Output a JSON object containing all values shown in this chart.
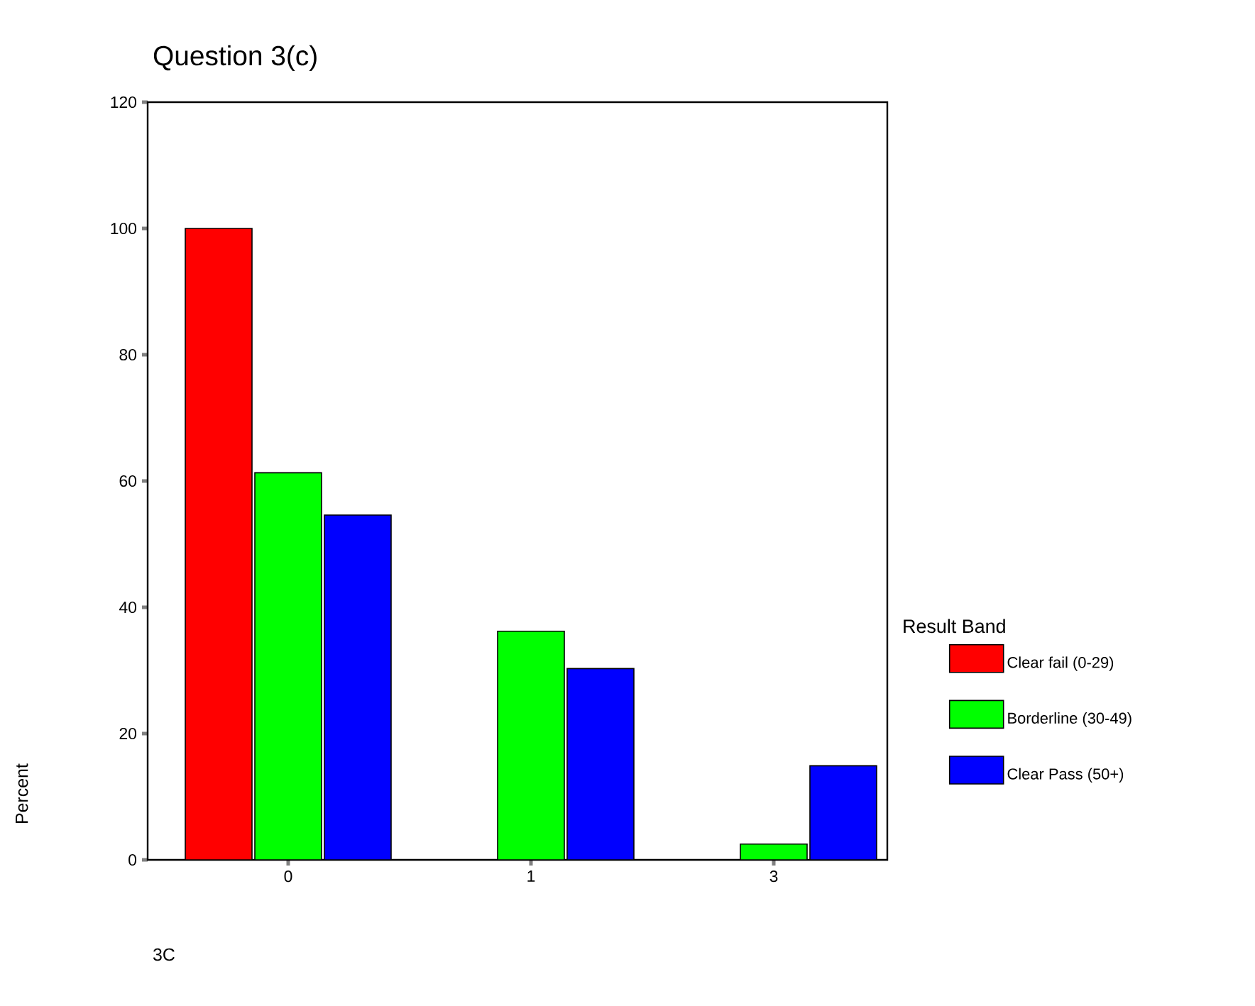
{
  "chart_data": {
    "type": "bar",
    "title": "Question 3(c)",
    "xlabel": "3C",
    "ylabel": "Percent",
    "legend_title": "Result Band",
    "categories": [
      "0",
      "1",
      "3"
    ],
    "series": [
      {
        "name": "Clear fail (0-29)",
        "color": "#ff0000",
        "values": [
          100,
          0,
          0
        ]
      },
      {
        "name": "Borderline (30-49)",
        "color": "#00ff00",
        "values": [
          61.3,
          36.2,
          2.5
        ]
      },
      {
        "name": "Clear Pass (50+)",
        "color": "#0000ff",
        "values": [
          54.6,
          30.3,
          14.9
        ]
      }
    ],
    "ylim": [
      0,
      120
    ],
    "yticks": [
      0,
      20,
      40,
      60,
      80,
      100,
      120
    ],
    "legend": "right",
    "grid": false
  }
}
